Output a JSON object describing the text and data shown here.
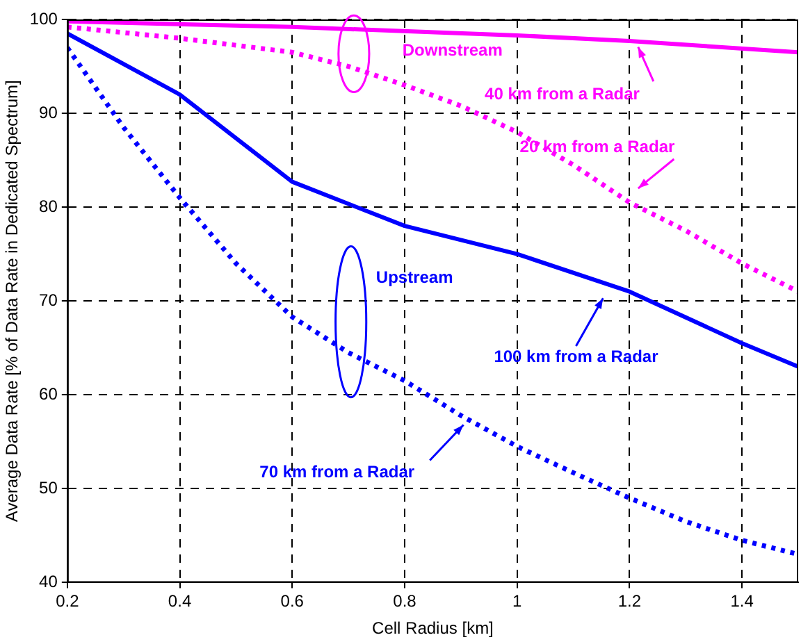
{
  "chart_data": {
    "type": "line",
    "xlabel": "Cell Radius [km]",
    "ylabel": "Average Data Rate [% of Data Rate in Dedicated Spectrum]",
    "xlim": [
      0.2,
      1.5
    ],
    "xticks": [
      0.2,
      0.4,
      0.6,
      0.8,
      1,
      1.2,
      1.4
    ],
    "ylim": [
      40,
      100
    ],
    "yticks": [
      40,
      50,
      60,
      70,
      80,
      90,
      100
    ],
    "grid": true,
    "legend": false,
    "marker": "none",
    "series": [
      {
        "color": "#ff00ff",
        "line_style": "solid",
        "x": [
          0.2,
          0.6,
          1.0,
          1.2,
          1.5
        ],
        "values": [
          99.8,
          99.2,
          98.3,
          97.7,
          96.5
        ]
      },
      {
        "color": "#ff00ff",
        "line_style": "dotted",
        "x": [
          0.2,
          0.4,
          0.6,
          0.7,
          0.8,
          0.9,
          1.0,
          1.1,
          1.2,
          1.3,
          1.4,
          1.5
        ],
        "values": [
          99.2,
          98.0,
          96.5,
          95,
          93,
          90.8,
          88,
          84.5,
          80.5,
          77.5,
          74,
          71
        ]
      },
      {
        "color": "#0000ff",
        "line_style": "solid",
        "x": [
          0.2,
          0.4,
          0.6,
          0.8,
          1.0,
          1.2,
          1.4,
          1.5
        ],
        "values": [
          98.5,
          92,
          82.7,
          78,
          75,
          71,
          65.5,
          63
        ]
      },
      {
        "color": "#0000ff",
        "line_style": "dotted",
        "x": [
          0.2,
          0.3,
          0.4,
          0.5,
          0.6,
          0.7,
          0.8,
          0.9,
          1.0,
          1.1,
          1.2,
          1.3,
          1.4,
          1.5
        ],
        "values": [
          97,
          88.5,
          81,
          74,
          68.3,
          64.5,
          61.5,
          57.8,
          54.5,
          51.7,
          49,
          46.5,
          44.5,
          43
        ]
      }
    ],
    "annotations": [
      "Downstream",
      "Upstream",
      "40 km from a Radar",
      "20 km from a Radar",
      "100 km from a Radar",
      "70 km from a Radar"
    ]
  }
}
